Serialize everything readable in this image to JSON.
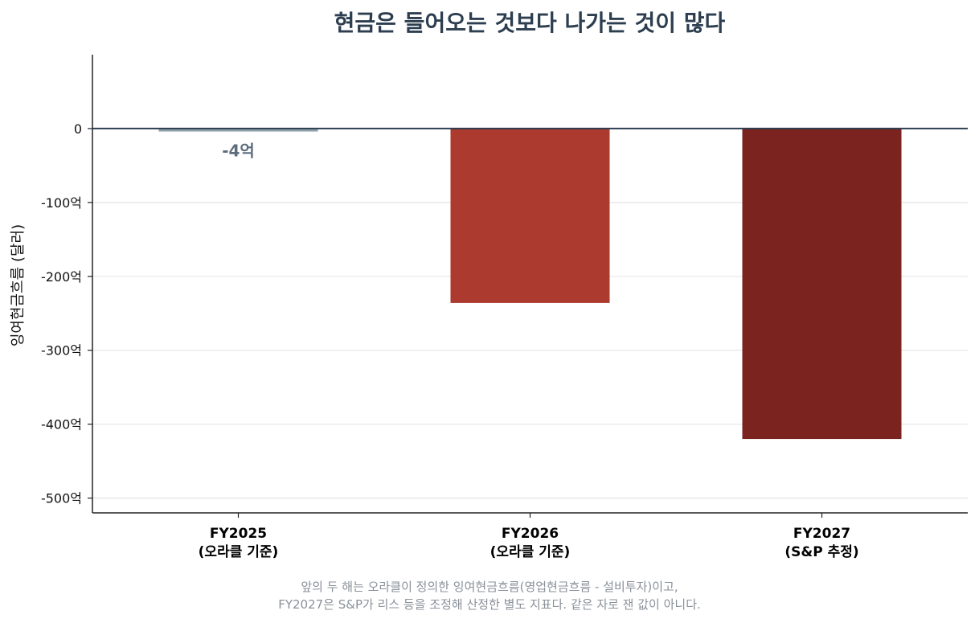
{
  "chart_data": {
    "type": "bar",
    "title": "현금은 들어오는 것보다 나가는 것이 많다",
    "ylabel": "잉여현금흐름 (달러)",
    "xlabel": "",
    "categories": [
      [
        "FY2025",
        "(오라클 기준)"
      ],
      [
        "FY2026",
        "(오라클 기준)"
      ],
      [
        "FY2027",
        "(S&P 추정)"
      ]
    ],
    "values": [
      -4,
      -236,
      -420
    ],
    "value_unit": "억 달러",
    "data_labels": [
      "-4억",
      "",
      ""
    ],
    "bar_colors": [
      "#8fa1aa",
      "#ad3a2f",
      "#7b231e"
    ],
    "data_label_color": "#5d6d7e",
    "zero_line_color": "#2c3e50",
    "ylim": [
      -520,
      100
    ],
    "yticks": [
      0,
      -100,
      -200,
      -300,
      -400,
      -500
    ],
    "ytick_labels": [
      "0",
      "-100억",
      "-200억",
      "-300억",
      "-400억",
      "-500억"
    ],
    "grid": "horizontal",
    "legend": "none"
  },
  "footnote": [
    "앞의 두 해는 오라클이 정의한 잉여현금흐름(영업현금흐름 - 설비투자)이고,",
    "FY2027은 S&P가 리스 등을 조정해 산정한 별도 지표다. 같은 자로 잰 값이 아니다."
  ]
}
